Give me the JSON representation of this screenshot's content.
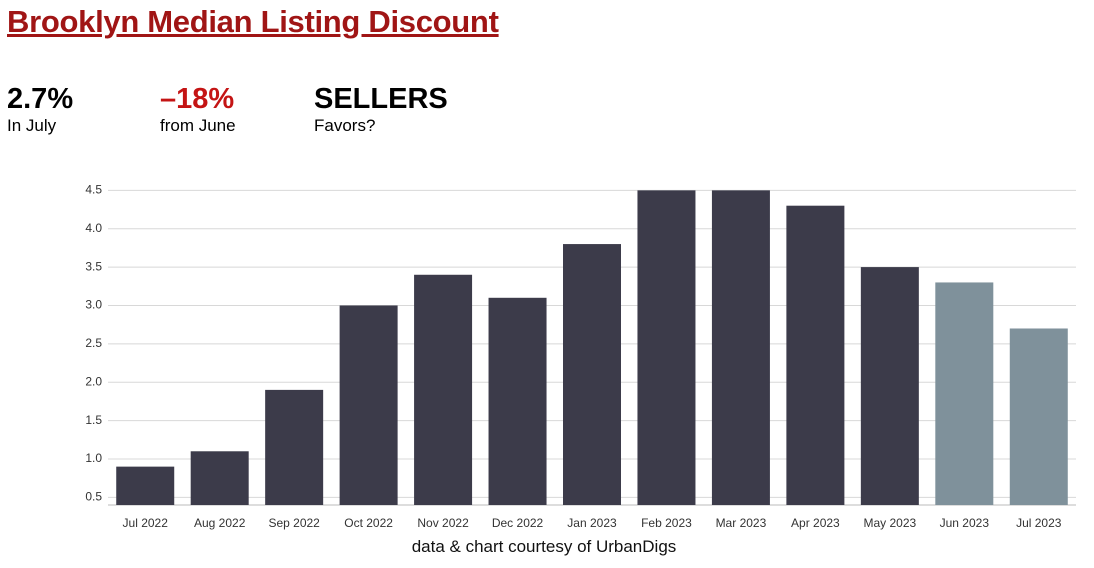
{
  "header": {
    "title": "Brooklyn Median Listing Discount",
    "stats": [
      {
        "value": "2.7%",
        "label": "In July"
      },
      {
        "value": "–18%",
        "label": "from June"
      },
      {
        "value": "SELLERS",
        "label": "Favors?"
      }
    ]
  },
  "chart_data": {
    "type": "bar",
    "categories": [
      "Jul 2022",
      "Aug 2022",
      "Sep 2022",
      "Oct 2022",
      "Nov 2022",
      "Dec 2022",
      "Jan 2023",
      "Feb 2023",
      "Mar 2023",
      "Apr 2023",
      "May 2023",
      "Jun 2023",
      "Jul 2023"
    ],
    "values": [
      0.9,
      1.1,
      1.9,
      3.0,
      3.4,
      3.1,
      3.8,
      4.5,
      4.5,
      4.3,
      3.5,
      3.3,
      2.7
    ],
    "colors": [
      "#3c3b4a",
      "#3c3b4a",
      "#3c3b4a",
      "#3c3b4a",
      "#3c3b4a",
      "#3c3b4a",
      "#3c3b4a",
      "#3c3b4a",
      "#3c3b4a",
      "#3c3b4a",
      "#3c3b4a",
      "#7f919b",
      "#7f919b"
    ],
    "ylim": [
      0.4,
      4.7
    ],
    "yticks": [
      0.5,
      {
        "value": 1,
        "label": "1.0"
      },
      1.5,
      {
        "value": 2,
        "label": "2.0"
      },
      2.5,
      {
        "value": 3,
        "label": "3.0"
      },
      3.5,
      {
        "value": 4,
        "label": "4.0"
      },
      4.5
    ],
    "grid": true
  },
  "footer": {
    "credit": "data & chart courtesy of UrbanDigs"
  }
}
